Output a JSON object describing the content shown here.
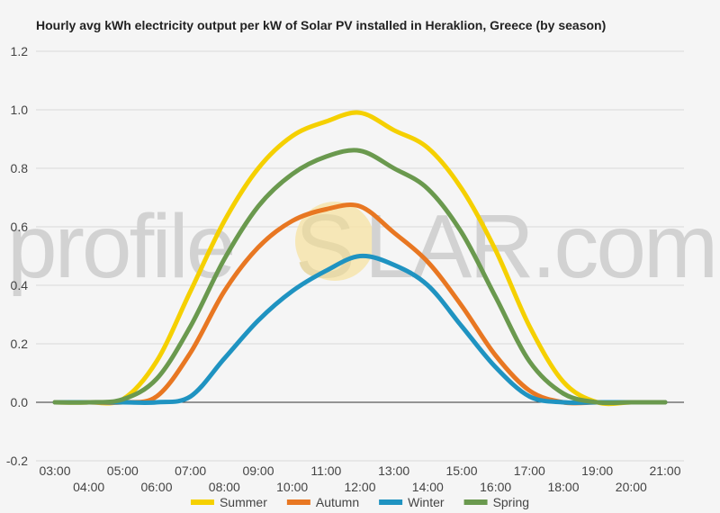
{
  "chart_data": {
    "type": "line",
    "title": "Hourly avg kWh electricity output per kW of Solar PV installed in Heraklion, Greece (by season)",
    "xlabel": "",
    "ylabel": "",
    "ylim": [
      -0.2,
      1.2
    ],
    "yticks": [
      "-0.2",
      "0.0",
      "0.2",
      "0.4",
      "0.6",
      "0.8",
      "1.0",
      "1.2"
    ],
    "x": [
      "03:00",
      "04:00",
      "05:00",
      "06:00",
      "07:00",
      "08:00",
      "09:00",
      "10:00",
      "11:00",
      "12:00",
      "13:00",
      "14:00",
      "15:00",
      "16:00",
      "17:00",
      "18:00",
      "19:00",
      "20:00",
      "21:00"
    ],
    "grid": true,
    "legend": "bottom",
    "watermark": {
      "left": "profile",
      "middle": "S",
      "right": "LAR.com"
    },
    "series": [
      {
        "name": "Summer",
        "color": "#f5d000",
        "values": [
          0.0,
          0.0,
          0.01,
          0.14,
          0.38,
          0.62,
          0.8,
          0.91,
          0.96,
          0.99,
          0.93,
          0.87,
          0.73,
          0.52,
          0.26,
          0.07,
          0.0,
          0.0,
          0.0
        ]
      },
      {
        "name": "Autumn",
        "color": "#e87722",
        "values": [
          0.0,
          0.0,
          0.0,
          0.02,
          0.17,
          0.38,
          0.53,
          0.62,
          0.66,
          0.67,
          0.58,
          0.48,
          0.33,
          0.16,
          0.04,
          0.0,
          0.0,
          0.0,
          0.0
        ]
      },
      {
        "name": "Winter",
        "color": "#1f93c1",
        "values": [
          0.0,
          0.0,
          0.0,
          0.0,
          0.02,
          0.15,
          0.28,
          0.38,
          0.45,
          0.5,
          0.47,
          0.4,
          0.26,
          0.12,
          0.02,
          0.0,
          0.0,
          0.0,
          0.0
        ]
      },
      {
        "name": "Spring",
        "color": "#6a994e",
        "values": [
          0.0,
          0.0,
          0.01,
          0.08,
          0.26,
          0.49,
          0.67,
          0.78,
          0.84,
          0.86,
          0.8,
          0.73,
          0.58,
          0.36,
          0.14,
          0.03,
          0.0,
          0.0,
          0.0
        ]
      }
    ]
  }
}
